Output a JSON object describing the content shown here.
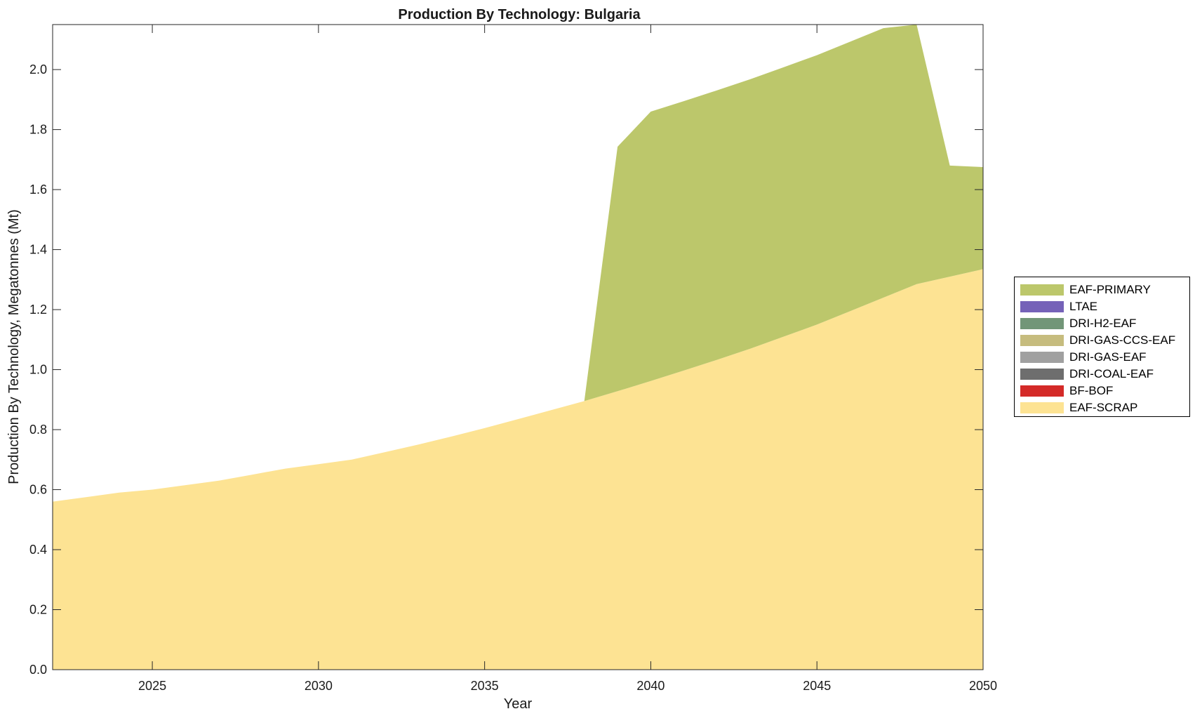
{
  "chart_data": {
    "type": "area",
    "title": "Production By Technology: Bulgaria",
    "xlabel": "Year",
    "ylabel": "Production By Technology, Megatonnes (Mt)",
    "xlim": [
      2022,
      2050
    ],
    "ylim": [
      0,
      2.15
    ],
    "xticks": [
      "2025",
      "2030",
      "2035",
      "2040",
      "2045",
      "2050"
    ],
    "yticks": [
      "0.0",
      "0.2",
      "0.4",
      "0.6",
      "0.8",
      "1.0",
      "1.2",
      "1.4",
      "1.6",
      "1.8",
      "2.0"
    ],
    "legend_position": "right",
    "grid": false,
    "x": [
      2022,
      2023,
      2024,
      2025,
      2026,
      2027,
      2028,
      2029,
      2030,
      2031,
      2032,
      2033,
      2034,
      2035,
      2036,
      2037,
      2038,
      2039,
      2040,
      2041,
      2042,
      2043,
      2044,
      2045,
      2046,
      2047,
      2048,
      2049,
      2050
    ],
    "series": [
      {
        "name": "EAF-SCRAP",
        "color": "#fde393",
        "values": [
          0.56,
          0.575,
          0.59,
          0.6,
          0.615,
          0.63,
          0.65,
          0.67,
          0.685,
          0.7,
          0.725,
          0.75,
          0.777,
          0.805,
          0.835,
          0.865,
          0.895,
          0.928,
          0.962,
          0.997,
          1.033,
          1.07,
          1.11,
          1.15,
          1.195,
          1.24,
          1.285,
          1.31,
          1.335
        ]
      },
      {
        "name": "BF-BOF",
        "color": "#d42a28",
        "values": [
          0,
          0,
          0,
          0,
          0,
          0,
          0,
          0,
          0,
          0,
          0,
          0,
          0,
          0,
          0,
          0,
          0,
          0,
          0,
          0,
          0,
          0,
          0,
          0,
          0,
          0,
          0,
          0,
          0
        ]
      },
      {
        "name": "DRI-COAL-EAF",
        "color": "#6e6e6e",
        "values": [
          0,
          0,
          0,
          0,
          0,
          0,
          0,
          0,
          0,
          0,
          0,
          0,
          0,
          0,
          0,
          0,
          0,
          0,
          0,
          0,
          0,
          0,
          0,
          0,
          0,
          0,
          0,
          0,
          0
        ]
      },
      {
        "name": "DRI-GAS-EAF",
        "color": "#a0a0a0",
        "values": [
          0,
          0,
          0,
          0,
          0,
          0,
          0,
          0,
          0,
          0,
          0,
          0,
          0,
          0,
          0,
          0,
          0,
          0,
          0,
          0,
          0,
          0,
          0,
          0,
          0,
          0,
          0,
          0,
          0
        ]
      },
      {
        "name": "DRI-GAS-CCS-EAF",
        "color": "#c6bc7e",
        "values": [
          0,
          0,
          0,
          0,
          0,
          0,
          0,
          0,
          0,
          0,
          0,
          0,
          0,
          0,
          0,
          0,
          0,
          0,
          0,
          0,
          0,
          0,
          0,
          0,
          0,
          0,
          0,
          0,
          0
        ]
      },
      {
        "name": "DRI-H2-EAF",
        "color": "#729678",
        "values": [
          0,
          0,
          0,
          0,
          0,
          0,
          0,
          0,
          0,
          0,
          0,
          0,
          0,
          0,
          0,
          0,
          0,
          0,
          0,
          0,
          0,
          0,
          0,
          0,
          0,
          0,
          0,
          0,
          0
        ]
      },
      {
        "name": "LTAE",
        "color": "#7562b8",
        "values": [
          0,
          0,
          0,
          0,
          0,
          0,
          0,
          0,
          0,
          0,
          0,
          0,
          0,
          0,
          0,
          0,
          0,
          0,
          0,
          0,
          0,
          0,
          0,
          0,
          0,
          0,
          0,
          0,
          0
        ]
      },
      {
        "name": "EAF-PRIMARY",
        "color": "#bcc76b",
        "values": [
          0,
          0,
          0,
          0,
          0,
          0,
          0,
          0,
          0,
          0,
          0,
          0,
          0,
          0,
          0,
          0,
          0,
          0.815,
          0.898,
          0.898,
          0.898,
          0.898,
          0.898,
          0.898,
          0.898,
          0.898,
          0.865,
          0.37,
          0.34
        ]
      }
    ]
  }
}
